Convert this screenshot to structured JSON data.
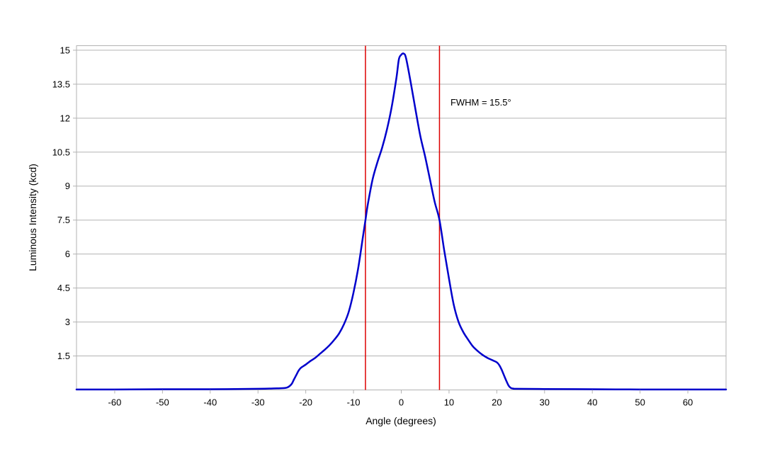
{
  "chart_data": {
    "type": "line",
    "title": "",
    "xlabel": "Angle (degrees)",
    "ylabel": "Luminous Intensity (kcd)",
    "xlim": [
      -68,
      68
    ],
    "ylim": [
      0,
      15.2
    ],
    "x_ticks": [
      -60,
      -50,
      -40,
      -30,
      -20,
      -10,
      0,
      10,
      20,
      30,
      40,
      50,
      60
    ],
    "x_tick_labels": [
      "-60",
      "-50",
      "-40",
      "-30",
      "-20",
      "-10",
      "0",
      "10",
      "20",
      "30",
      "40",
      "50",
      "60"
    ],
    "y_ticks": [
      1.5,
      3,
      4.5,
      6,
      7.5,
      9,
      10.5,
      12,
      13.5,
      15
    ],
    "y_tick_labels": [
      "1.5",
      "3",
      "4.5",
      "6",
      "7.5",
      "9",
      "10.5",
      "12",
      "13.5",
      "15"
    ],
    "grid": {
      "horizontal": true,
      "vertical": false
    },
    "series": [
      {
        "color": "#0000cc",
        "x": [
          -68,
          -60,
          -50,
          -40,
          -30,
          -26,
          -24,
          -23,
          -22.5,
          -22,
          -21.5,
          -21,
          -20,
          -19,
          -18,
          -17,
          -16,
          -15,
          -14,
          -13,
          -12,
          -11,
          -10,
          -9,
          -8,
          -7.5,
          -7,
          -6,
          -5,
          -4,
          -3,
          -2,
          -1,
          -0.5,
          0,
          0.5,
          1,
          2,
          3,
          4,
          5,
          6,
          7,
          8,
          9,
          10,
          11,
          12,
          13,
          14,
          15,
          16,
          17,
          18,
          19,
          20,
          20.5,
          21,
          21.5,
          22,
          22.5,
          23,
          23.5,
          24,
          30,
          40,
          50,
          60,
          68
        ],
        "y": [
          0.02,
          0.02,
          0.03,
          0.03,
          0.05,
          0.07,
          0.1,
          0.25,
          0.45,
          0.65,
          0.85,
          0.98,
          1.12,
          1.28,
          1.42,
          1.6,
          1.78,
          1.98,
          2.22,
          2.5,
          2.9,
          3.45,
          4.3,
          5.4,
          6.8,
          7.5,
          8.2,
          9.3,
          10.05,
          10.7,
          11.5,
          12.5,
          13.8,
          14.6,
          14.8,
          14.85,
          14.65,
          13.55,
          12.35,
          11.2,
          10.3,
          9.3,
          8.3,
          7.5,
          6.15,
          4.9,
          3.75,
          3.0,
          2.55,
          2.22,
          1.92,
          1.72,
          1.55,
          1.42,
          1.32,
          1.22,
          1.1,
          0.9,
          0.65,
          0.4,
          0.18,
          0.08,
          0.06,
          0.05,
          0.04,
          0.03,
          0.02,
          0.02,
          0.02
        ]
      }
    ],
    "vlines": [
      {
        "x": -7.5,
        "color": "#dd0000"
      },
      {
        "x": 8.0,
        "color": "#dd0000"
      }
    ],
    "annotations": [
      {
        "text": "FWHM = 15.5°",
        "x": 10.3,
        "y": 12.7
      }
    ]
  }
}
